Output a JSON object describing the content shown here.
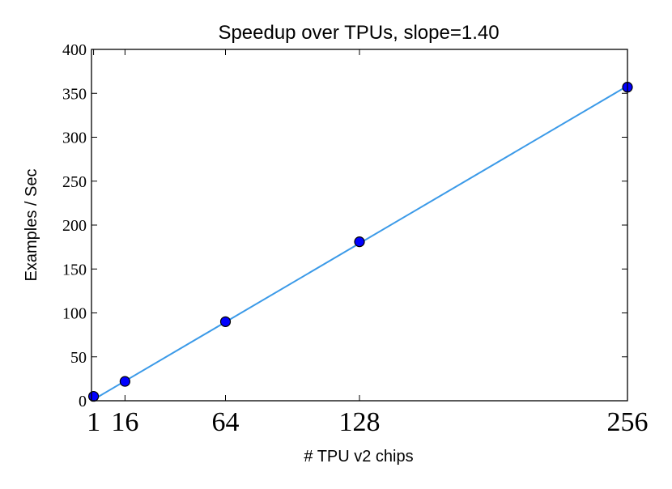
{
  "chart_data": {
    "type": "scatter",
    "title": "Speedup over TPUs, slope=1.40",
    "xlabel": "# TPU v2 chips",
    "ylabel": "Examples / Sec",
    "xlim": [
      0,
      256
    ],
    "ylim": [
      0,
      400
    ],
    "xticks": [
      1,
      16,
      64,
      128,
      256
    ],
    "yticks": [
      0,
      50,
      100,
      150,
      200,
      250,
      300,
      350,
      400
    ],
    "grid": false,
    "legend": "none",
    "series": [
      {
        "points": [
          {
            "x": 1,
            "y": 5
          },
          {
            "x": 16,
            "y": 22
          },
          {
            "x": 64,
            "y": 90
          },
          {
            "x": 128,
            "y": 181
          },
          {
            "x": 256,
            "y": 357
          }
        ],
        "marker_color": "#0000ff",
        "fit": {
          "slope": 1.4,
          "x": [
            1,
            256
          ],
          "y": [
            1.4,
            358.4
          ],
          "color": "#3b9ae8"
        }
      }
    ]
  }
}
